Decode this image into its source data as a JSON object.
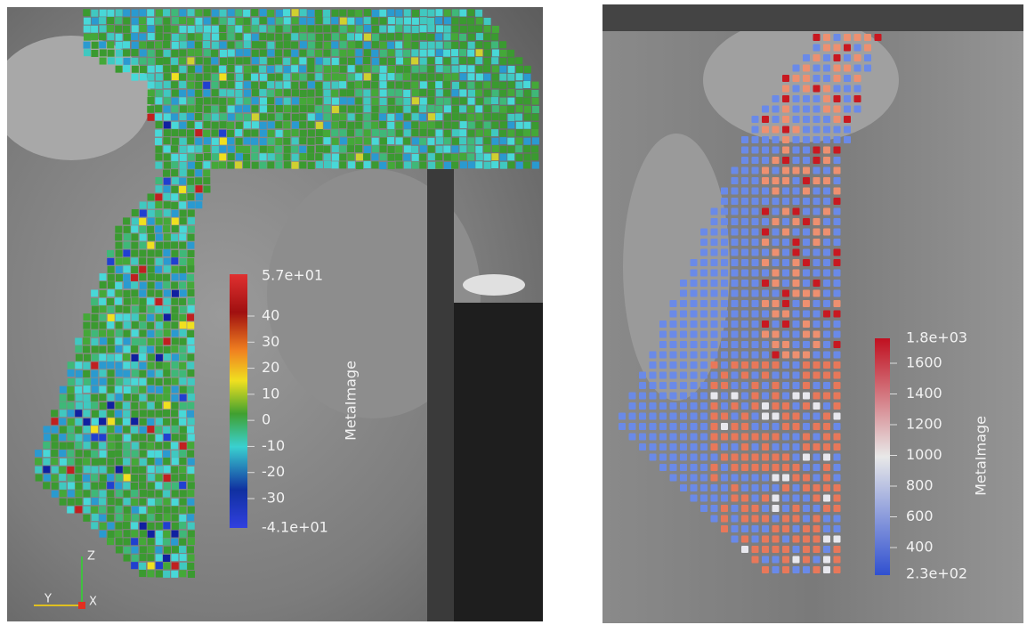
{
  "panels": [
    {
      "colorbar": {
        "title": "MetaImage",
        "max_label": "5.7e+01",
        "min_label": "-4.1e+01",
        "ticks": [
          "40",
          "30",
          "20",
          "10",
          "0",
          "-10",
          "-20",
          "-30"
        ]
      },
      "axes": {
        "z": "Z",
        "y": "Y",
        "x": "X"
      }
    },
    {
      "colorbar": {
        "title": "MetaImage",
        "max_label": "1.8e+03",
        "min_label": "2.3e+02",
        "ticks": [
          "1600",
          "1400",
          "1200",
          "1000",
          "800",
          "600",
          "400"
        ]
      }
    }
  ]
}
